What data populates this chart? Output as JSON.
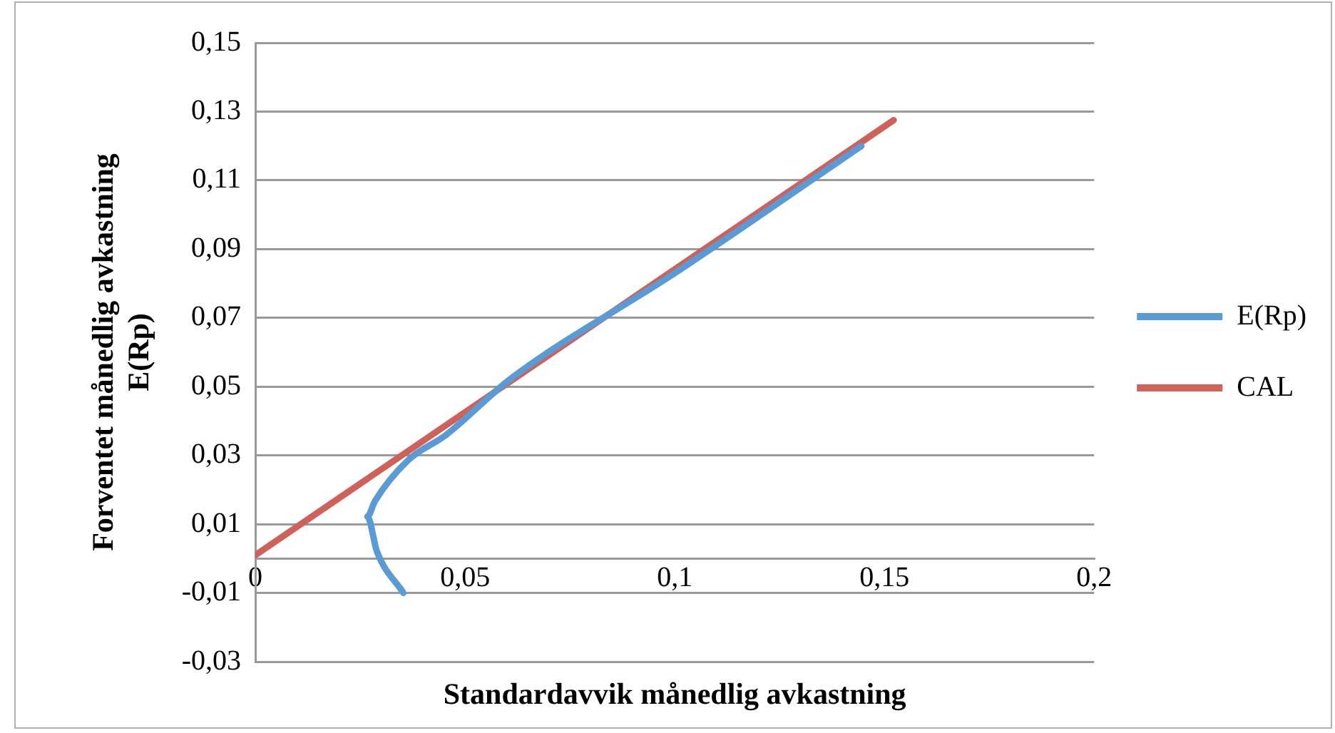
{
  "chart_data": {
    "type": "line",
    "xlabel": "Standardavvik månedlig avkastning",
    "ylabel": "Forventet månedlig avkastning\nE(Rp)",
    "series": [
      {
        "name": "E(Rp)",
        "color": "#5b9bd5",
        "x": [
          0.0353,
          0.029,
          0.0267,
          0.0285,
          0.0364,
          0.0454,
          0.061,
          0.1,
          0.1445
        ],
        "values": [
          -0.01,
          0.002,
          0.0122,
          0.0167,
          0.0286,
          0.0359,
          0.0524,
          0.083,
          0.12
        ]
      },
      {
        "name": "CAL",
        "color": "#d0605a",
        "x": [
          0,
          0.1522
        ],
        "values": [
          0.001,
          0.1275
        ]
      }
    ],
    "xlim": [
      0,
      0.2
    ],
    "xticks": [
      0,
      {
        "value": 0.05,
        "label": "0,05"
      },
      {
        "value": 0.1,
        "label": "0,1"
      },
      {
        "value": 0.15,
        "label": "0,15"
      },
      {
        "value": 0.2,
        "label": "0,2"
      }
    ],
    "ylim": [
      -0.03,
      0.15
    ],
    "yticks": [
      {
        "value": -0.03,
        "label": "-0,03"
      },
      {
        "value": -0.01,
        "label": "-0,01"
      },
      {
        "value": 0.01,
        "label": "0,01"
      },
      {
        "value": 0.03,
        "label": "0,03"
      },
      {
        "value": 0.05,
        "label": "0,05"
      },
      {
        "value": 0.07,
        "label": "0,07"
      },
      {
        "value": 0.09,
        "label": "0,09"
      },
      {
        "value": 0.11,
        "label": "0,11"
      },
      {
        "value": 0.13,
        "label": "0,13"
      },
      {
        "value": 0.15,
        "label": "0,15"
      }
    ],
    "grid": "y",
    "legend": "right",
    "marker": "none",
    "line_style": "solid"
  }
}
